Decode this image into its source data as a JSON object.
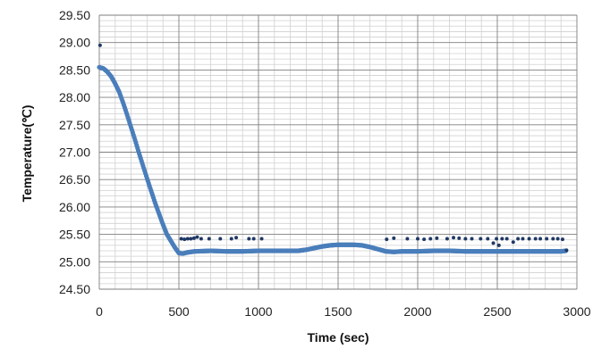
{
  "chart_data": {
    "type": "scatter",
    "xlabel": "Time (sec)",
    "ylabel": "Temperature(℃)",
    "xlim": [
      0,
      3000
    ],
    "ylim": [
      24.5,
      29.5
    ],
    "x_ticks": [
      0,
      500,
      1000,
      1500,
      2000,
      2500,
      3000
    ],
    "y_ticks": [
      24.5,
      25.0,
      25.5,
      26.0,
      26.5,
      27.0,
      27.5,
      28.0,
      28.5,
      29.0,
      29.5
    ],
    "x_tick_labels": [
      "0",
      "500",
      "1000",
      "1500",
      "2000",
      "2500",
      "3000"
    ],
    "y_tick_labels": [
      "24.50",
      "25.00",
      "25.50",
      "26.00",
      "26.50",
      "27.00",
      "27.50",
      "28.00",
      "28.50",
      "29.00",
      "29.50"
    ],
    "grid": true,
    "legend": "none",
    "colors": {
      "main_series": "#4a7ebb",
      "sparse_series": "#1f3864",
      "grid_minor": "#d0d0d0",
      "grid_major": "#7f7f7f"
    },
    "series": [
      {
        "marker": "dense-line",
        "points": [
          [
            0,
            28.55
          ],
          [
            25,
            28.53
          ],
          [
            50,
            28.47
          ],
          [
            75,
            28.38
          ],
          [
            100,
            28.25
          ],
          [
            125,
            28.1
          ],
          [
            150,
            27.9
          ],
          [
            175,
            27.68
          ],
          [
            200,
            27.45
          ],
          [
            225,
            27.22
          ],
          [
            250,
            26.98
          ],
          [
            275,
            26.75
          ],
          [
            300,
            26.52
          ],
          [
            325,
            26.3
          ],
          [
            350,
            26.08
          ],
          [
            375,
            25.88
          ],
          [
            400,
            25.68
          ],
          [
            425,
            25.5
          ],
          [
            450,
            25.38
          ],
          [
            475,
            25.26
          ],
          [
            500,
            25.16
          ],
          [
            525,
            25.15
          ],
          [
            550,
            25.17
          ],
          [
            600,
            25.19
          ],
          [
            700,
            25.2
          ],
          [
            800,
            25.19
          ],
          [
            900,
            25.19
          ],
          [
            1000,
            25.2
          ],
          [
            1100,
            25.2
          ],
          [
            1200,
            25.2
          ],
          [
            1250,
            25.2
          ],
          [
            1300,
            25.22
          ],
          [
            1350,
            25.25
          ],
          [
            1400,
            25.28
          ],
          [
            1450,
            25.3
          ],
          [
            1500,
            25.31
          ],
          [
            1550,
            25.31
          ],
          [
            1600,
            25.31
          ],
          [
            1650,
            25.3
          ],
          [
            1700,
            25.27
          ],
          [
            1750,
            25.23
          ],
          [
            1800,
            25.19
          ],
          [
            1850,
            25.18
          ],
          [
            1900,
            25.19
          ],
          [
            2000,
            25.19
          ],
          [
            2100,
            25.2
          ],
          [
            2200,
            25.2
          ],
          [
            2300,
            25.19
          ],
          [
            2400,
            25.19
          ],
          [
            2500,
            25.19
          ],
          [
            2600,
            25.19
          ],
          [
            2700,
            25.19
          ],
          [
            2800,
            25.19
          ],
          [
            2900,
            25.19
          ],
          [
            2930,
            25.2
          ]
        ]
      },
      {
        "marker": "sparse-dots",
        "points": [
          [
            5,
            28.95
          ],
          [
            515,
            25.42
          ],
          [
            535,
            25.41
          ],
          [
            555,
            25.42
          ],
          [
            575,
            25.42
          ],
          [
            595,
            25.43
          ],
          [
            615,
            25.45
          ],
          [
            640,
            25.42
          ],
          [
            690,
            25.42
          ],
          [
            760,
            25.42
          ],
          [
            830,
            25.42
          ],
          [
            860,
            25.44
          ],
          [
            940,
            25.42
          ],
          [
            970,
            25.42
          ],
          [
            1020,
            25.42
          ],
          [
            1805,
            25.41
          ],
          [
            1850,
            25.43
          ],
          [
            1935,
            25.42
          ],
          [
            2000,
            25.42
          ],
          [
            2040,
            25.41
          ],
          [
            2080,
            25.42
          ],
          [
            2120,
            25.43
          ],
          [
            2185,
            25.42
          ],
          [
            2225,
            25.44
          ],
          [
            2260,
            25.43
          ],
          [
            2300,
            25.42
          ],
          [
            2340,
            25.42
          ],
          [
            2395,
            25.42
          ],
          [
            2440,
            25.42
          ],
          [
            2475,
            25.34
          ],
          [
            2495,
            25.42
          ],
          [
            2510,
            25.3
          ],
          [
            2530,
            25.42
          ],
          [
            2560,
            25.42
          ],
          [
            2600,
            25.36
          ],
          [
            2630,
            25.42
          ],
          [
            2660,
            25.42
          ],
          [
            2700,
            25.42
          ],
          [
            2740,
            25.42
          ],
          [
            2770,
            25.42
          ],
          [
            2810,
            25.42
          ],
          [
            2850,
            25.42
          ],
          [
            2880,
            25.42
          ],
          [
            2910,
            25.41
          ],
          [
            2935,
            25.21
          ]
        ]
      }
    ]
  }
}
